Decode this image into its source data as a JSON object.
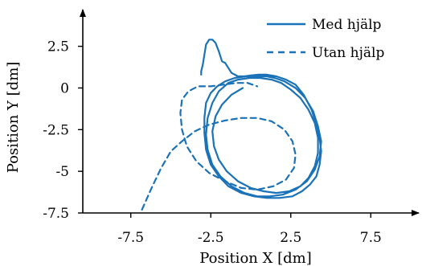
{
  "chart_data": {
    "type": "line",
    "xlabel": "Position X [dm]",
    "ylabel": "Position Y [dm]",
    "xlim": [
      -10.5,
      10.5
    ],
    "ylim": [
      -7.5,
      4.7
    ],
    "xticks": [
      -7.5,
      -2.5,
      2.5,
      7.5
    ],
    "xtick_labels": [
      "-7.5",
      "-2.5",
      "2.5",
      "7.5"
    ],
    "yticks": [
      2.5,
      0,
      -2.5,
      -5,
      -7.5
    ],
    "ytick_labels": [
      "2.5",
      "0",
      "-2.5",
      "-5",
      "-7.5"
    ],
    "grid": false,
    "legend": "top-right",
    "color": "#1a72b8",
    "series": [
      {
        "name": "Med hjälp",
        "style": "solid",
        "x": [
          -3.1,
          -3.1,
          -3.0,
          -2.9,
          -2.8,
          -2.6,
          -2.4,
          -2.2,
          -2.0,
          -1.8,
          -1.6,
          -1.4,
          -1.2,
          -1.0,
          -0.8,
          -0.4,
          0.0,
          0.5,
          1.0,
          1.6,
          2.2,
          2.8,
          3.3,
          3.8,
          4.1,
          4.3,
          4.4,
          4.3,
          4.1,
          3.7,
          3.2,
          2.6,
          1.8,
          1.0,
          0.2,
          -0.6,
          -1.4,
          -2.0,
          -2.5,
          -2.8,
          -2.9,
          -2.9,
          -2.8,
          -2.5,
          -2.1,
          -1.6,
          -1.0,
          -0.3,
          0.4,
          1.0,
          1.5,
          2.1,
          2.8,
          3.4,
          3.9,
          4.2,
          4.4,
          4.3,
          4.0,
          3.5,
          2.8,
          2.0,
          1.2,
          0.4,
          -0.4,
          -1.2,
          -1.9,
          -2.4,
          -2.7,
          -2.8,
          -2.7,
          -2.4,
          -2.0,
          -1.4,
          -0.8,
          -0.1,
          0.6,
          1.3,
          1.9,
          2.5,
          3.1,
          3.6,
          4.0,
          4.2,
          4.2,
          4.0,
          3.6,
          3.1,
          2.4,
          1.6,
          0.8,
          0.0,
          -0.8,
          -1.5,
          -2.0,
          -2.3,
          -2.4,
          -2.2,
          -1.8,
          -1.2,
          -0.5
        ],
        "y": [
          0.8,
          1.0,
          1.4,
          2.0,
          2.6,
          2.9,
          2.9,
          2.7,
          2.2,
          1.6,
          1.5,
          1.2,
          0.9,
          0.8,
          0.7,
          0.7,
          0.75,
          0.8,
          0.8,
          0.7,
          0.5,
          0.2,
          -0.4,
          -1.3,
          -2.2,
          -3.0,
          -3.8,
          -4.6,
          -5.3,
          -5.8,
          -6.2,
          -6.5,
          -6.6,
          -6.6,
          -6.5,
          -6.3,
          -5.9,
          -5.3,
          -4.6,
          -3.7,
          -2.7,
          -1.8,
          -0.9,
          -0.3,
          0.1,
          0.4,
          0.6,
          0.7,
          0.7,
          0.7,
          0.6,
          0.4,
          0.0,
          -0.6,
          -1.4,
          -2.3,
          -3.2,
          -4.1,
          -4.9,
          -5.6,
          -6.1,
          -6.4,
          -6.5,
          -6.5,
          -6.3,
          -5.9,
          -5.3,
          -4.6,
          -3.7,
          -2.8,
          -1.8,
          -0.9,
          -0.2,
          0.3,
          0.5,
          0.6,
          0.6,
          0.5,
          0.3,
          -0.1,
          -0.6,
          -1.3,
          -2.1,
          -3.0,
          -3.9,
          -4.7,
          -5.4,
          -5.9,
          -6.2,
          -6.3,
          -6.2,
          -6.0,
          -5.6,
          -5.0,
          -4.3,
          -3.5,
          -2.6,
          -1.7,
          -1.0,
          -0.4,
          0.0
        ]
      },
      {
        "name": "Utan hjälp",
        "style": "dashed",
        "x": [
          -6.8,
          -6.2,
          -5.6,
          -5.0,
          -4.3,
          -3.5,
          -2.6,
          -1.6,
          -0.6,
          0.4,
          1.3,
          2.1,
          2.6,
          2.8,
          2.7,
          2.2,
          1.4,
          0.4,
          -0.6,
          -1.6,
          -2.6,
          -3.4,
          -4.0,
          -4.3,
          -4.4,
          -4.3,
          -3.9,
          -3.3,
          -2.5,
          -1.7,
          -0.9,
          -0.2,
          0.4
        ],
        "y": [
          -7.3,
          -6.0,
          -4.8,
          -3.8,
          -3.2,
          -2.6,
          -2.2,
          -1.95,
          -1.8,
          -1.8,
          -2.0,
          -2.5,
          -3.2,
          -4.0,
          -4.8,
          -5.5,
          -5.9,
          -6.1,
          -6.0,
          -5.6,
          -5.1,
          -4.4,
          -3.5,
          -2.5,
          -1.5,
          -0.7,
          -0.2,
          0.1,
          0.1,
          0.2,
          0.3,
          0.3,
          0.1
        ]
      }
    ]
  }
}
